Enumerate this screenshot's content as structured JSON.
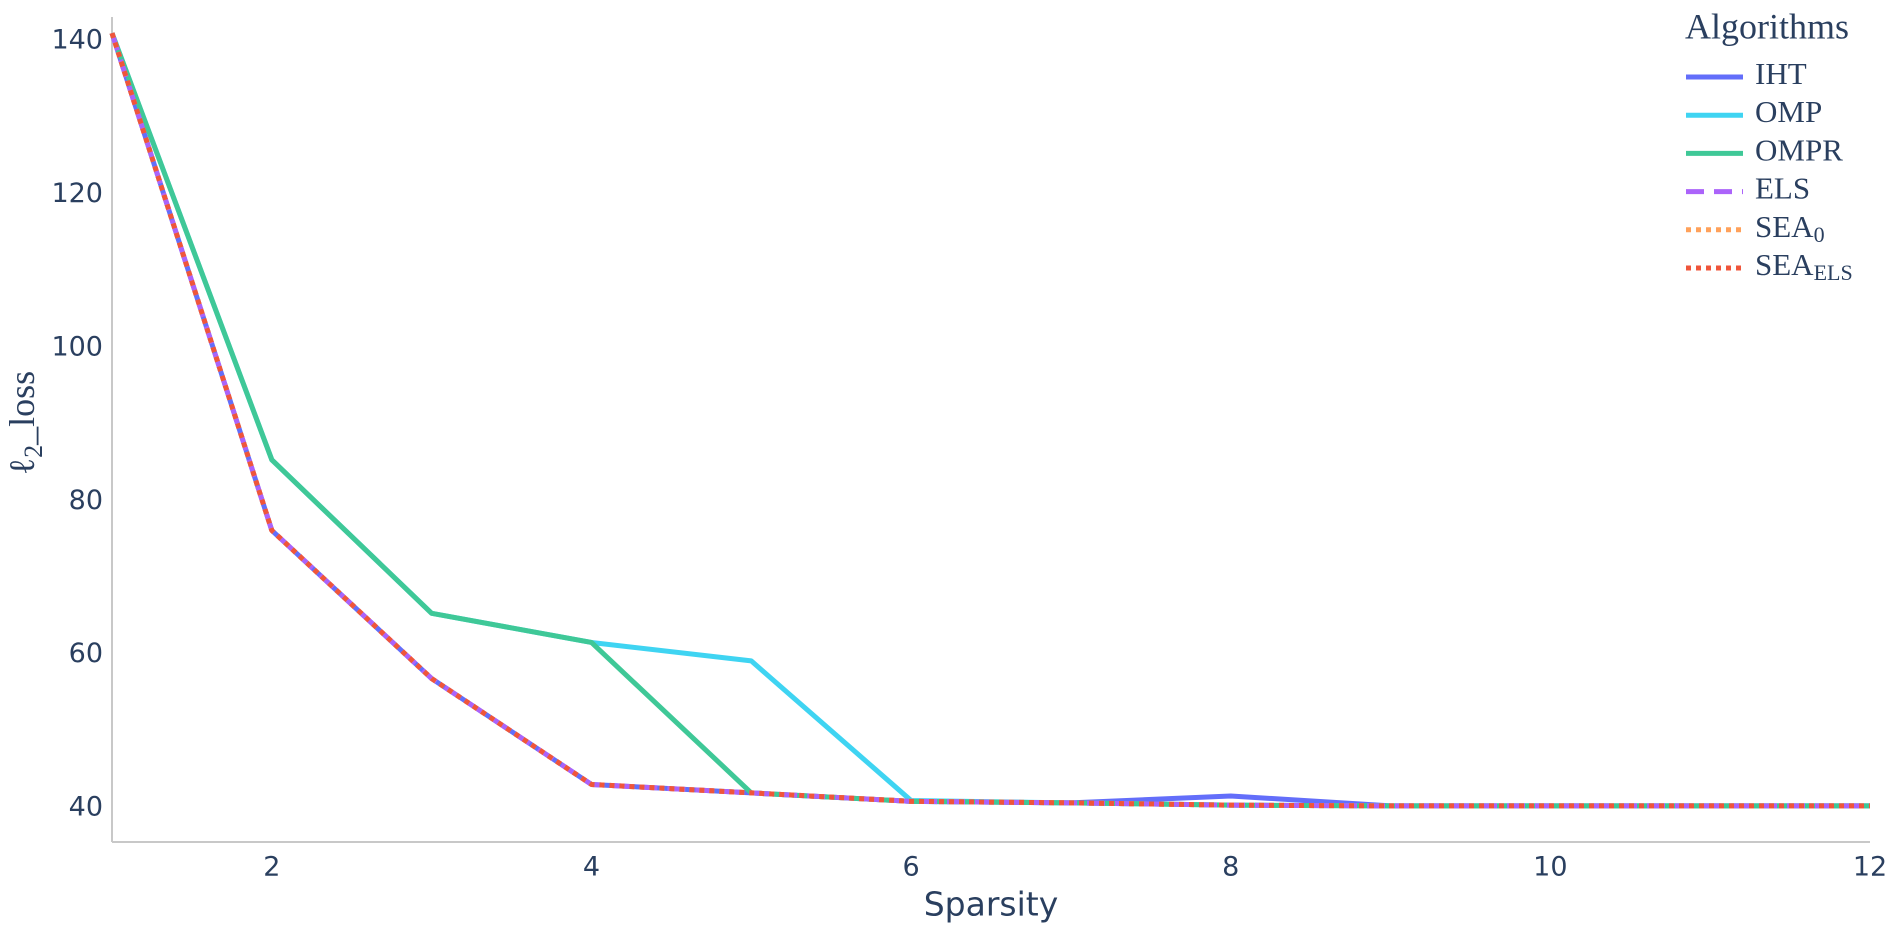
{
  "chart_data": {
    "type": "line",
    "x_label": "Sparsity",
    "y_label": [
      "ℓ",
      "2",
      "_loss"
    ],
    "legend_title": "Algorithms",
    "legend": "top-right",
    "grid": false,
    "x": [
      1,
      2,
      3,
      4,
      5,
      6,
      7,
      8,
      9,
      10,
      11,
      12
    ],
    "xlim": [
      1,
      12
    ],
    "xticks": [
      2,
      4,
      6,
      8,
      10,
      12
    ],
    "ylim": [
      35.6,
      143.1
    ],
    "yticks": [
      40,
      60,
      80,
      100,
      120,
      140
    ],
    "series": [
      {
        "name": "IHT",
        "color": "#636efa",
        "dash": "solid",
        "values": [
          141,
          76.2,
          56.9,
          43.1,
          42.0,
          40.9,
          40.7,
          41.6,
          40.3,
          40.3,
          40.3,
          40.3
        ]
      },
      {
        "name": "OMP",
        "color": "#3fd4f2",
        "dash": "solid",
        "values": [
          141,
          85.4,
          65.4,
          61.6,
          59.2,
          41.0,
          40.7,
          40.4,
          40.3,
          40.3,
          40.3,
          40.3
        ]
      },
      {
        "name": "OMPR",
        "color": "#3fc897",
        "dash": "solid",
        "values": [
          141,
          85.4,
          65.4,
          61.6,
          42.0,
          40.9,
          40.7,
          40.4,
          40.3,
          40.3,
          40.3,
          40.3
        ]
      },
      {
        "name": "ELS",
        "color": "#ab63fa",
        "dash": "dash",
        "values": [
          141,
          76.2,
          56.9,
          43.1,
          42.0,
          40.9,
          40.7,
          40.4,
          40.3,
          40.3,
          40.3,
          40.3
        ]
      },
      {
        "name": "SEA",
        "name_sub": "0",
        "color": "#ffa15a",
        "dash": "dot",
        "values": [
          141,
          76.2,
          56.9,
          43.1,
          42.0,
          40.9,
          40.7,
          40.4,
          40.3,
          40.3,
          40.3,
          40.3
        ]
      },
      {
        "name": "SEA",
        "name_sub": "ELS",
        "color": "#ef553b",
        "dash": "dot",
        "values": [
          141,
          76.2,
          56.9,
          43.1,
          42.0,
          40.9,
          40.7,
          40.4,
          40.3,
          40.3,
          40.3,
          40.3
        ]
      }
    ]
  }
}
